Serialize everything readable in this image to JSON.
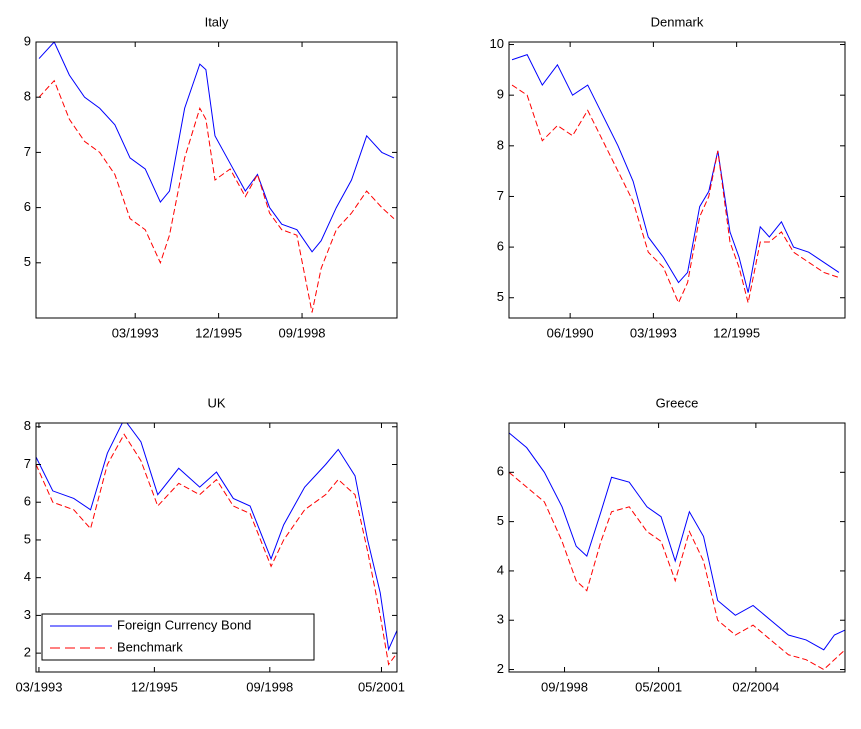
{
  "chart_data": [
    {
      "type": "line",
      "title": "Italy",
      "x": [
        1990.0,
        1990.5,
        1991.0,
        1991.5,
        1992.0,
        1992.5,
        1993.0,
        1993.5,
        1994.0,
        1994.3,
        1994.8,
        1995.3,
        1995.5,
        1995.8,
        1996.3,
        1996.8,
        1997.2,
        1997.6,
        1998.0,
        1998.5,
        1999.0,
        1999.3,
        1999.8,
        2000.3,
        2000.8,
        2001.3,
        2001.7
      ],
      "series": [
        {
          "color": "#0000ff",
          "linestyle": "solid",
          "values": [
            8.7,
            9.0,
            8.4,
            8.0,
            7.8,
            7.5,
            6.9,
            6.7,
            6.1,
            6.3,
            7.8,
            8.6,
            8.5,
            7.3,
            6.8,
            6.3,
            6.6,
            6.0,
            5.7,
            5.6,
            5.2,
            5.4,
            6.0,
            6.5,
            7.3,
            7.0,
            6.9
          ]
        },
        {
          "color": "#ff0000",
          "linestyle": "dashed",
          "values": [
            8.0,
            8.3,
            7.6,
            7.2,
            7.0,
            6.6,
            5.8,
            5.6,
            5.0,
            5.5,
            6.9,
            7.8,
            7.6,
            6.5,
            6.7,
            6.2,
            6.6,
            5.9,
            5.6,
            5.5,
            4.1,
            4.9,
            5.6,
            5.9,
            6.3,
            6.0,
            5.8
          ]
        }
      ],
      "xlim": [
        1989.9,
        2001.8
      ],
      "xticks": [
        {
          "value": 1993.17,
          "label": "03/1993"
        },
        {
          "value": 1995.92,
          "label": "12/1995"
        },
        {
          "value": 1998.67,
          "label": "09/1998"
        }
      ],
      "ylim": [
        4,
        9
      ],
      "yticks": [
        5,
        6,
        7,
        8,
        9
      ]
    },
    {
      "type": "line",
      "title": "Denmark",
      "x": [
        1988.5,
        1989.0,
        1989.5,
        1990.0,
        1990.5,
        1991.0,
        1991.5,
        1992.0,
        1992.5,
        1993.0,
        1993.5,
        1994.0,
        1994.3,
        1994.7,
        1995.0,
        1995.3,
        1995.7,
        1996.0,
        1996.3,
        1996.7,
        1997.0,
        1997.4,
        1997.8,
        1998.3,
        1998.8,
        1999.3
      ],
      "series": [
        {
          "color": "#0000ff",
          "linestyle": "solid",
          "values": [
            9.7,
            9.8,
            9.2,
            9.6,
            9.0,
            9.2,
            8.6,
            8.0,
            7.3,
            6.2,
            5.8,
            5.3,
            5.5,
            6.8,
            7.1,
            7.9,
            6.3,
            5.8,
            5.1,
            6.4,
            6.2,
            6.5,
            6.0,
            5.9,
            5.7,
            5.5
          ]
        },
        {
          "color": "#ff0000",
          "linestyle": "dashed",
          "values": [
            9.2,
            9.0,
            8.1,
            8.4,
            8.2,
            8.7,
            8.1,
            7.5,
            6.9,
            5.9,
            5.6,
            4.9,
            5.3,
            6.6,
            7.0,
            7.9,
            6.1,
            5.6,
            4.9,
            6.1,
            6.1,
            6.3,
            5.9,
            5.7,
            5.5,
            5.4
          ]
        }
      ],
      "xlim": [
        1988.4,
        1999.5
      ],
      "xticks": [
        {
          "value": 1990.42,
          "label": "06/1990"
        },
        {
          "value": 1993.17,
          "label": "03/1993"
        },
        {
          "value": 1995.92,
          "label": "12/1995"
        }
      ],
      "ylim": [
        4.6,
        10.05
      ],
      "yticks": [
        5,
        6,
        7,
        8,
        9,
        10
      ]
    },
    {
      "type": "line",
      "title": "UK",
      "x": [
        1993.1,
        1993.5,
        1994.0,
        1994.4,
        1994.8,
        1995.2,
        1995.6,
        1996.0,
        1996.5,
        1997.0,
        1997.4,
        1997.8,
        1998.2,
        1998.7,
        1999.0,
        1999.5,
        2000.0,
        2000.3,
        2000.7,
        2001.0,
        2001.3,
        2001.5,
        2001.7
      ],
      "series": [
        {
          "name": "Foreign Currency Bond",
          "color": "#0000ff",
          "linestyle": "solid",
          "values": [
            7.2,
            6.3,
            6.1,
            5.8,
            7.3,
            8.2,
            7.6,
            6.2,
            6.9,
            6.4,
            6.8,
            6.1,
            5.9,
            4.5,
            5.4,
            6.4,
            7.0,
            7.4,
            6.7,
            5.0,
            3.6,
            2.1,
            2.6
          ]
        },
        {
          "name": "Benchmark",
          "color": "#ff0000",
          "linestyle": "dashed",
          "values": [
            7.0,
            6.0,
            5.8,
            5.3,
            7.0,
            7.8,
            7.1,
            5.9,
            6.5,
            6.2,
            6.6,
            5.9,
            5.7,
            4.3,
            5.0,
            5.8,
            6.2,
            6.6,
            6.2,
            4.7,
            3.0,
            1.7,
            2.0
          ]
        }
      ],
      "xlim": [
        1993.1,
        2001.7
      ],
      "xticks": [
        {
          "value": 1993.17,
          "label": "03/1993"
        },
        {
          "value": 1995.92,
          "label": "12/1995"
        },
        {
          "value": 1998.67,
          "label": "09/1998"
        },
        {
          "value": 2001.33,
          "label": "05/2001"
        }
      ],
      "ylim": [
        1.5,
        8.1
      ],
      "yticks": [
        2,
        3,
        4,
        5,
        6,
        7,
        8
      ],
      "legend": "lower left"
    },
    {
      "type": "line",
      "title": "Greece",
      "x": [
        1997.1,
        1997.6,
        1998.1,
        1998.6,
        1999.0,
        1999.3,
        1999.7,
        2000.0,
        2000.5,
        2001.0,
        2001.4,
        2001.8,
        2002.2,
        2002.6,
        2003.0,
        2003.5,
        2004.0,
        2004.5,
        2005.0,
        2005.5,
        2006.0,
        2006.3,
        2006.6
      ],
      "series": [
        {
          "color": "#0000ff",
          "linestyle": "solid",
          "values": [
            6.8,
            6.5,
            6.0,
            5.3,
            4.5,
            4.3,
            5.2,
            5.9,
            5.8,
            5.3,
            5.1,
            4.2,
            5.2,
            4.7,
            3.4,
            3.1,
            3.3,
            3.0,
            2.7,
            2.6,
            2.4,
            2.7,
            2.8
          ]
        },
        {
          "color": "#ff0000",
          "linestyle": "dashed",
          "values": [
            6.0,
            5.7,
            5.4,
            4.6,
            3.8,
            3.6,
            4.6,
            5.2,
            5.3,
            4.8,
            4.6,
            3.8,
            4.8,
            4.2,
            3.0,
            2.7,
            2.9,
            2.6,
            2.3,
            2.2,
            2.0,
            2.2,
            2.4
          ]
        }
      ],
      "xlim": [
        1997.1,
        2006.6
      ],
      "xticks": [
        {
          "value": 1998.67,
          "label": "09/1998"
        },
        {
          "value": 2001.33,
          "label": "05/2001"
        },
        {
          "value": 2004.08,
          "label": "02/2004"
        }
      ],
      "ylim": [
        1.95,
        7.0
      ],
      "yticks": [
        2,
        3,
        4,
        5,
        6
      ]
    }
  ]
}
